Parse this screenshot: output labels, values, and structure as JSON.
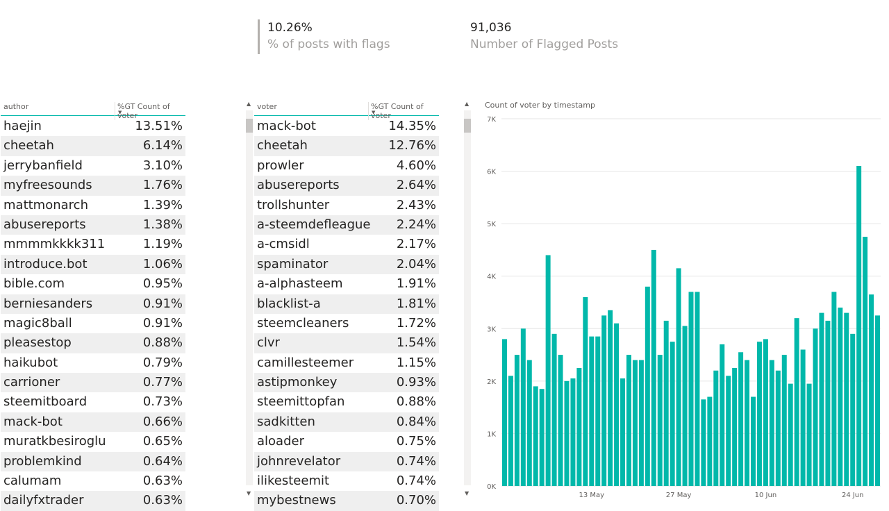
{
  "kpis": [
    {
      "value": "10.26%",
      "label": "% of posts with flags"
    },
    {
      "value": "91,036",
      "label": "Number of Flagged Posts"
    }
  ],
  "author_table": {
    "col1": "author",
    "col2": "%GT Count of voter",
    "rows": [
      [
        "haejin",
        "13.51%"
      ],
      [
        "cheetah",
        "6.14%"
      ],
      [
        "jerrybanfield",
        "3.10%"
      ],
      [
        "myfreesounds",
        "1.76%"
      ],
      [
        "mattmonarch",
        "1.39%"
      ],
      [
        "abusereports",
        "1.38%"
      ],
      [
        "mmmmkkkk311",
        "1.19%"
      ],
      [
        "introduce.bot",
        "1.06%"
      ],
      [
        "bible.com",
        "0.95%"
      ],
      [
        "berniesanders",
        "0.91%"
      ],
      [
        "magic8ball",
        "0.91%"
      ],
      [
        "pleasestop",
        "0.88%"
      ],
      [
        "haikubot",
        "0.79%"
      ],
      [
        "carrioner",
        "0.77%"
      ],
      [
        "steemitboard",
        "0.73%"
      ],
      [
        "mack-bot",
        "0.66%"
      ],
      [
        "muratkbesiroglu",
        "0.65%"
      ],
      [
        "problemkind",
        "0.64%"
      ],
      [
        "calumam",
        "0.63%"
      ],
      [
        "dailyfxtrader",
        "0.63%"
      ]
    ]
  },
  "voter_table": {
    "col1": "voter",
    "col2": "%GT Count of voter",
    "rows": [
      [
        "mack-bot",
        "14.35%"
      ],
      [
        "cheetah",
        "12.76%"
      ],
      [
        "prowler",
        "4.60%"
      ],
      [
        "abusereports",
        "2.64%"
      ],
      [
        "trollshunter",
        "2.43%"
      ],
      [
        "a-steemdefleague",
        "2.24%"
      ],
      [
        "a-cmsidl",
        "2.17%"
      ],
      [
        "spaminator",
        "2.04%"
      ],
      [
        "a-alphasteem",
        "1.91%"
      ],
      [
        "blacklist-a",
        "1.81%"
      ],
      [
        "steemcleaners",
        "1.72%"
      ],
      [
        "clvr",
        "1.54%"
      ],
      [
        "camillesteemer",
        "1.15%"
      ],
      [
        "astipmonkey",
        "0.93%"
      ],
      [
        "steemittopfan",
        "0.88%"
      ],
      [
        "sadkitten",
        "0.84%"
      ],
      [
        "aloader",
        "0.75%"
      ],
      [
        "johnrevelator",
        "0.74%"
      ],
      [
        "ilikesteemit",
        "0.74%"
      ],
      [
        "mybestnews",
        "0.70%"
      ]
    ]
  },
  "colors": {
    "accent": "#01b8aa",
    "alt_row": "#efefef"
  },
  "chart_data": {
    "type": "bar",
    "title": "Count of voter by timestamp",
    "ylim": [
      0,
      7000
    ],
    "y_ticks": [
      "0K",
      "1K",
      "2K",
      "3K",
      "4K",
      "5K",
      "6K",
      "7K"
    ],
    "x_tick_labels": [
      {
        "label": "13 May",
        "index": 14
      },
      {
        "label": "27 May",
        "index": 28
      },
      {
        "label": "10 Jun",
        "index": 42
      },
      {
        "label": "24 Jun",
        "index": 56
      }
    ],
    "values": [
      2800,
      2100,
      2500,
      3000,
      2400,
      1900,
      1850,
      4400,
      2900,
      2500,
      2000,
      2050,
      2250,
      3600,
      2850,
      2850,
      3250,
      3350,
      3100,
      2050,
      2500,
      2400,
      2400,
      3800,
      4500,
      2500,
      3150,
      2750,
      4150,
      3050,
      3700,
      3700,
      1650,
      1700,
      2200,
      2700,
      2100,
      2250,
      2550,
      2400,
      1700,
      2750,
      2800,
      2400,
      2200,
      2500,
      1950,
      3200,
      2600,
      1950,
      3000,
      3300,
      3150,
      3700,
      3400,
      3300,
      2900,
      6100,
      4750,
      3650,
      3250
    ]
  }
}
